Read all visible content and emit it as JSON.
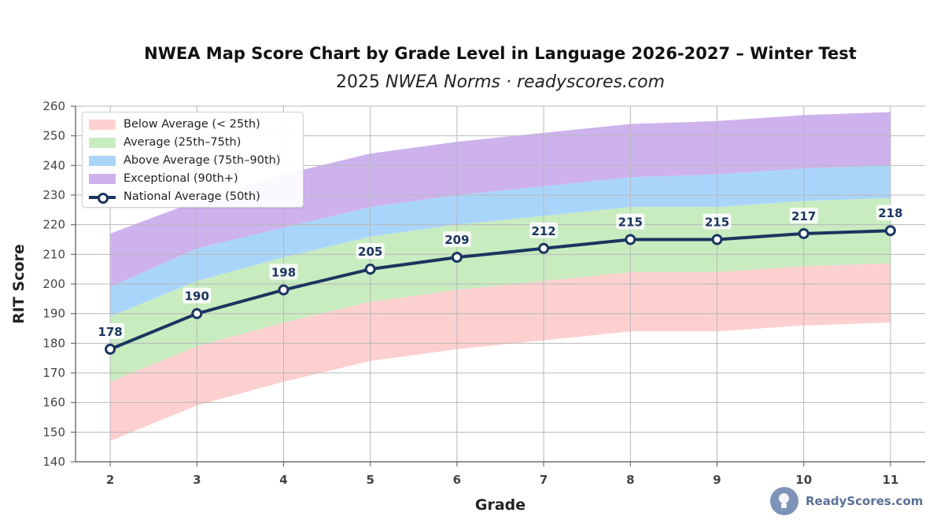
{
  "header": {
    "title": "NWEA Map Score Chart by Grade Level in Language 2026-2027 – Winter Test",
    "subtitle_prefix": "2025 ",
    "subtitle_italic": "NWEA Norms · readyscores.com"
  },
  "legend": {
    "items": [
      {
        "label": "Below Average (< 25th)",
        "color": "#fdd0d0"
      },
      {
        "label": "Average (25th–75th)",
        "color": "#c8ecc0"
      },
      {
        "label": "Above Average (75th–90th)",
        "color": "#aad5fb"
      },
      {
        "label": "Exceptional (90th+)",
        "color": "#cdb2ee"
      },
      {
        "label": "National Average (50th)",
        "color": "#1a3560"
      }
    ]
  },
  "brand": {
    "name": "ReadyScores.com"
  },
  "chart_data": {
    "type": "area",
    "xlabel": "Grade",
    "ylabel": "RIT Score",
    "ylim": [
      140,
      260
    ],
    "yticks": [
      140,
      150,
      160,
      170,
      180,
      190,
      200,
      210,
      220,
      230,
      240,
      250,
      260
    ],
    "x": [
      2,
      3,
      4,
      5,
      6,
      7,
      8,
      9,
      10,
      11
    ],
    "grid": true,
    "legend_position": "top-left",
    "bands": {
      "floor": [
        147,
        159,
        167,
        174,
        178,
        181,
        184,
        184,
        186,
        187
      ],
      "p25": [
        167,
        179,
        187,
        194,
        198,
        201,
        204,
        204,
        206,
        207
      ],
      "p75": [
        189,
        201,
        209,
        216,
        220,
        223,
        226,
        226,
        228,
        229
      ],
      "p90": [
        199,
        212,
        219,
        226,
        230,
        233,
        236,
        237,
        239,
        240
      ],
      "ceiling": [
        217,
        228,
        237,
        244,
        248,
        251,
        254,
        255,
        257,
        258
      ]
    },
    "series": [
      {
        "name": "National Average (50th)",
        "values": [
          178,
          190,
          198,
          205,
          209,
          212,
          215,
          215,
          217,
          218
        ]
      }
    ],
    "colors": {
      "below": "#fdd0d0",
      "average": "#c8ecc0",
      "above": "#aad5fb",
      "exceptional": "#cdb2ee",
      "line": "#1a3560",
      "grid": "#b8b8b8"
    }
  }
}
